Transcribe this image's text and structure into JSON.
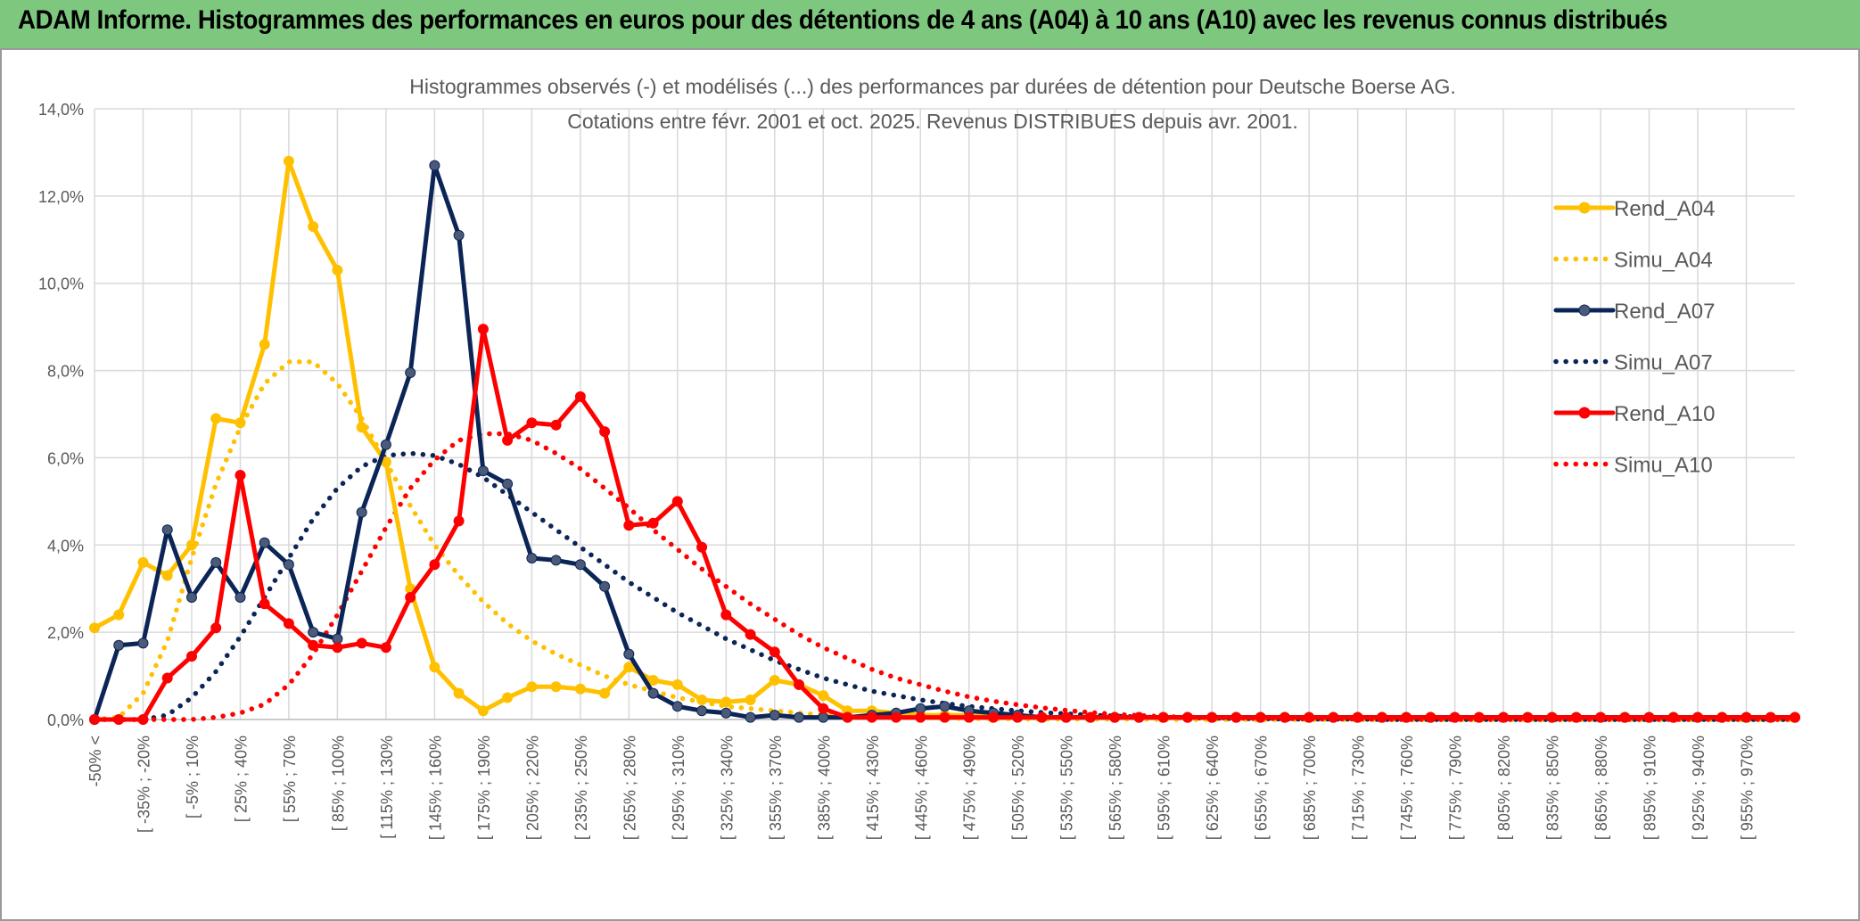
{
  "header": {
    "title": "ADAM Informe. Histogrammes des performances en euros pour des détentions de 4 ans (A04) à 10 ans (A10) avec les revenus connus distribués"
  },
  "colors": {
    "header_bg": "#7dc77e",
    "a04": "#ffc000",
    "a07": "#0b2557",
    "a07_marker": "#4a5a78",
    "a10": "#ff0000"
  },
  "chart_data": {
    "type": "line",
    "title_line1": "Histogrammes observés (-) et modélisés (...) des performances par durées de détention pour Deutsche Boerse AG.",
    "title_line2": "Cotations entre févr. 2001 et oct. 2025. Revenus DISTRIBUES depuis avr. 2001.",
    "ylim": [
      0,
      14
    ],
    "y_ticks": [
      "0,0%",
      "2,0%",
      "4,0%",
      "6,0%",
      "8,0%",
      "10,0%",
      "12,0%",
      "14,0%"
    ],
    "grid": true,
    "legend_position": "right",
    "x_tick_labels": [
      "-50% <",
      "[ -35% ; -20%",
      "[ -5% ; 10%",
      "[ 25% ; 40%",
      "[ 55% ; 70%",
      "[ 85% ; 100%",
      "[ 115% ; 130%",
      "[ 145% ; 160%",
      "[ 175% ; 190%",
      "[ 205% ; 220%",
      "[ 235% ; 250%",
      "[ 265% ; 280%",
      "[ 295% ; 310%",
      "[ 325% ; 340%",
      "[ 355% ; 370%",
      "[ 385% ; 400%",
      "[ 415% ; 430%",
      "[ 445% ; 460%",
      "[ 475% ; 490%",
      "[ 505% ; 520%",
      "[ 535% ; 550%",
      "[ 565% ; 580%",
      "[ 595% ; 610%",
      "[ 625% ; 640%",
      "[ 655% ; 670%",
      "[ 685% ; 700%",
      "[ 715% ; 730%",
      "[ 745% ; 760%",
      "[ 775% ; 790%",
      "[ 805% ; 820%",
      "[ 835% ; 850%",
      "[ 865% ; 880%",
      "[ 895% ; 910%",
      "[ 925% ; 940%",
      "[ 955% ; 970%"
    ],
    "series": [
      {
        "name": "Rend_A04",
        "style": "solid",
        "color": "#ffc000",
        "markers": true,
        "values": [
          2.1,
          2.4,
          3.6,
          3.3,
          4.0,
          6.9,
          6.8,
          8.6,
          12.8,
          11.3,
          10.3,
          6.7,
          5.9,
          3.0,
          1.2,
          0.6,
          0.2,
          0.5,
          0.75,
          0.75,
          0.7,
          0.6,
          1.2,
          0.9,
          0.8,
          0.45,
          0.4,
          0.45,
          0.9,
          0.8,
          0.55,
          0.2,
          0.2,
          0.15,
          0.1,
          0.1,
          0.1,
          0.05,
          0.05,
          0.05,
          0.05,
          0.05,
          0.05,
          0.05,
          0.05,
          0.05,
          0.05,
          0.05,
          0.05,
          0.05,
          0.05,
          0.05,
          0.05,
          0.05,
          0.05,
          0.05,
          0.05,
          0.05,
          0.05,
          0.05,
          0.05,
          0.05,
          0.05,
          0.05,
          0.05,
          0.05,
          0.05,
          0.05,
          0.05,
          0.05,
          0.05
        ]
      },
      {
        "name": "Simu_A04",
        "style": "dotted",
        "color": "#ffc000",
        "markers": false,
        "values": [
          0.0,
          0.05,
          0.6,
          1.8,
          3.7,
          5.4,
          6.7,
          7.7,
          8.2,
          8.2,
          7.7,
          6.9,
          5.9,
          4.9,
          4.0,
          3.3,
          2.7,
          2.2,
          1.8,
          1.5,
          1.25,
          1.0,
          0.8,
          0.65,
          0.5,
          0.4,
          0.3,
          0.25,
          0.2,
          0.15,
          0.1,
          0.08,
          0.06,
          0.05,
          0.04,
          0.03,
          0.02,
          0.02,
          0.01,
          0.01,
          0.01,
          0.01,
          0.01,
          0.01,
          0.0,
          0.0,
          0.0,
          0.0,
          0.0,
          0.0,
          0.0,
          0.0,
          0.0,
          0.0,
          0.0,
          0.0,
          0.0,
          0.0,
          0.0,
          0.0,
          0.0,
          0.0,
          0.0,
          0.0,
          0.0,
          0.0,
          0.0,
          0.0,
          0.0,
          0.0,
          0.0
        ]
      },
      {
        "name": "Rend_A07",
        "style": "solid",
        "color": "#0b2557",
        "markers": true,
        "values": [
          0.0,
          1.7,
          1.75,
          4.35,
          2.8,
          3.6,
          2.8,
          4.05,
          3.55,
          2.0,
          1.85,
          4.75,
          6.3,
          7.95,
          12.7,
          11.1,
          5.7,
          5.4,
          3.7,
          3.65,
          3.55,
          3.05,
          1.5,
          0.6,
          0.3,
          0.2,
          0.15,
          0.05,
          0.1,
          0.05,
          0.05,
          0.05,
          0.1,
          0.15,
          0.25,
          0.3,
          0.2,
          0.15,
          0.1,
          0.05,
          0.05,
          0.05,
          0.05,
          0.05,
          0.05,
          0.05,
          0.05,
          0.05,
          0.05,
          0.05,
          0.05,
          0.05,
          0.05,
          0.05,
          0.05,
          0.05,
          0.05,
          0.05,
          0.05,
          0.05,
          0.05,
          0.05,
          0.05,
          0.05,
          0.05,
          0.05,
          0.05,
          0.05,
          0.05,
          0.05,
          0.05
        ]
      },
      {
        "name": "Simu_A07",
        "style": "dotted",
        "color": "#0b2557",
        "markers": false,
        "values": [
          0.0,
          0.0,
          0.0,
          0.1,
          0.5,
          1.1,
          1.9,
          2.8,
          3.7,
          4.6,
          5.3,
          5.8,
          6.05,
          6.1,
          6.05,
          5.85,
          5.55,
          5.15,
          4.75,
          4.35,
          3.95,
          3.55,
          3.15,
          2.8,
          2.45,
          2.15,
          1.85,
          1.6,
          1.35,
          1.15,
          0.95,
          0.8,
          0.65,
          0.55,
          0.45,
          0.37,
          0.3,
          0.25,
          0.2,
          0.16,
          0.13,
          0.1,
          0.08,
          0.06,
          0.05,
          0.04,
          0.03,
          0.02,
          0.02,
          0.01,
          0.01,
          0.01,
          0.01,
          0.0,
          0.0,
          0.0,
          0.0,
          0.0,
          0.0,
          0.0,
          0.0,
          0.0,
          0.0,
          0.0,
          0.0,
          0.0,
          0.0,
          0.0,
          0.0,
          0.0,
          0.0
        ]
      },
      {
        "name": "Rend_A10",
        "style": "solid",
        "color": "#ff0000",
        "markers": true,
        "values": [
          0.0,
          0.0,
          0.0,
          0.95,
          1.45,
          2.1,
          5.6,
          2.65,
          2.2,
          1.7,
          1.65,
          1.75,
          1.65,
          2.8,
          3.55,
          4.55,
          8.95,
          6.4,
          6.8,
          6.75,
          7.4,
          6.6,
          4.45,
          4.5,
          5.0,
          3.95,
          2.4,
          1.95,
          1.55,
          0.8,
          0.25,
          0.05,
          0.05,
          0.05,
          0.05,
          0.05,
          0.05,
          0.05,
          0.05,
          0.05,
          0.05,
          0.05,
          0.05,
          0.05,
          0.05,
          0.05,
          0.05,
          0.05,
          0.05,
          0.05,
          0.05,
          0.05,
          0.05,
          0.05,
          0.05,
          0.05,
          0.05,
          0.05,
          0.05,
          0.05,
          0.05,
          0.05,
          0.05,
          0.05,
          0.05,
          0.05,
          0.05,
          0.05,
          0.05,
          0.05,
          0.05
        ]
      },
      {
        "name": "Simu_A10",
        "style": "dotted",
        "color": "#ff0000",
        "markers": false,
        "values": [
          0.0,
          0.0,
          0.0,
          0.0,
          0.0,
          0.05,
          0.15,
          0.35,
          0.8,
          1.5,
          2.4,
          3.4,
          4.4,
          5.3,
          5.95,
          6.4,
          6.55,
          6.55,
          6.4,
          6.1,
          5.75,
          5.3,
          4.85,
          4.35,
          3.9,
          3.45,
          3.05,
          2.65,
          2.3,
          1.95,
          1.65,
          1.4,
          1.15,
          0.95,
          0.8,
          0.65,
          0.52,
          0.42,
          0.34,
          0.27,
          0.21,
          0.16,
          0.12,
          0.09,
          0.07,
          0.05,
          0.04,
          0.03,
          0.02,
          0.02,
          0.01,
          0.01,
          0.01,
          0.0,
          0.0,
          0.0,
          0.0,
          0.0,
          0.0,
          0.0,
          0.0,
          0.0,
          0.0,
          0.0,
          0.0,
          0.0,
          0.0,
          0.0,
          0.0,
          0.0,
          0.0
        ]
      }
    ]
  }
}
